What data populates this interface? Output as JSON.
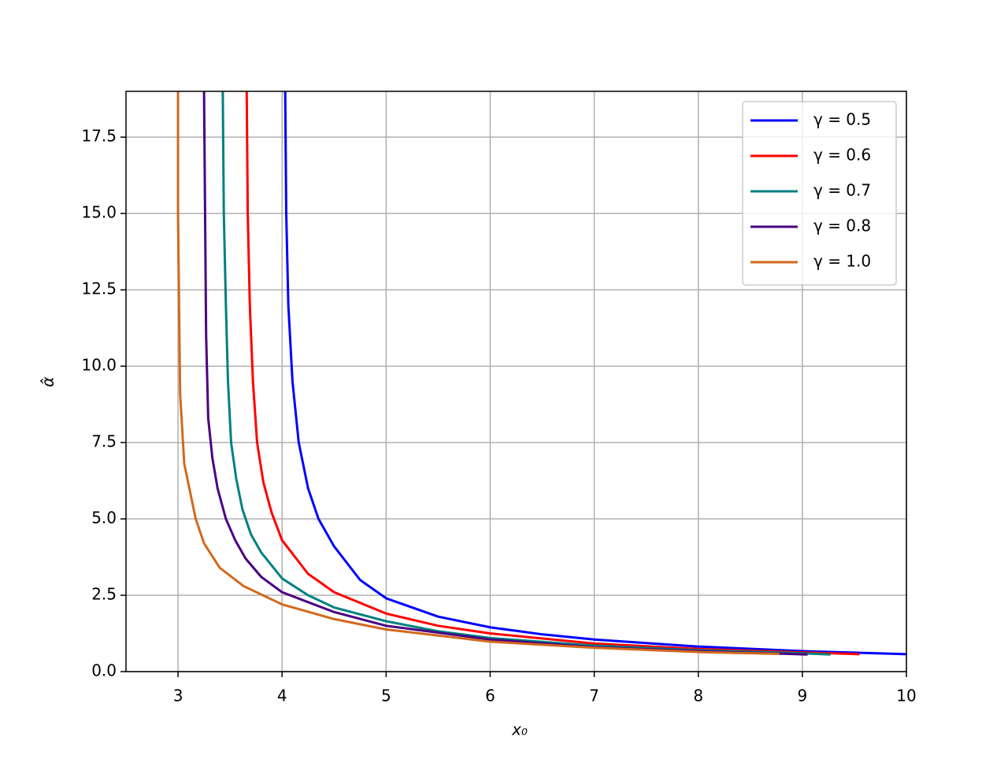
{
  "chart_data": {
    "type": "line",
    "xlabel": "x₀",
    "ylabel": "α̂",
    "xlim": [
      2.5,
      10
    ],
    "ylim": [
      0,
      19
    ],
    "xticks": [
      3,
      4,
      5,
      6,
      7,
      8,
      9,
      10
    ],
    "yticks": [
      {
        "value": 0,
        "label": "0.0"
      },
      2.5,
      {
        "value": 5,
        "label": "5.0"
      },
      7.5,
      {
        "value": 10,
        "label": "10.0"
      },
      12.5,
      {
        "value": 15,
        "label": "15.0"
      },
      17.5
    ],
    "grid": true,
    "legend": "upper right",
    "series": [
      {
        "name": "γ = 0.5",
        "color": "#0000ff",
        "x": [
          4.03,
          4.04,
          4.06,
          4.1,
          4.16,
          4.25,
          4.35,
          4.5,
          4.75,
          5,
          5.5,
          6,
          6.5,
          7,
          8,
          9,
          10
        ],
        "values": [
          19,
          15,
          12,
          9.5,
          7.5,
          6,
          5,
          4.1,
          3,
          2.4,
          1.8,
          1.45,
          1.22,
          1.05,
          0.82,
          0.67,
          0.57
        ]
      },
      {
        "name": "γ = 0.6",
        "color": "#ff0000",
        "x": [
          3.66,
          3.67,
          3.69,
          3.72,
          3.76,
          3.82,
          3.9,
          4,
          4.25,
          4.5,
          5,
          5.5,
          6,
          7,
          8,
          9,
          9.55
        ],
        "values": [
          19,
          15,
          12,
          9.5,
          7.5,
          6.2,
          5.2,
          4.3,
          3.2,
          2.6,
          1.9,
          1.5,
          1.25,
          0.92,
          0.74,
          0.63,
          0.57
        ]
      },
      {
        "name": "γ = 0.7",
        "color": "#008080",
        "x": [
          3.43,
          3.44,
          3.46,
          3.48,
          3.51,
          3.56,
          3.62,
          3.7,
          3.8,
          4,
          4.25,
          4.5,
          5,
          5.5,
          6,
          7,
          8,
          9,
          9.27
        ],
        "values": [
          19,
          15,
          12,
          9.5,
          7.5,
          6.3,
          5.3,
          4.5,
          3.9,
          3.05,
          2.5,
          2.1,
          1.65,
          1.32,
          1.1,
          0.85,
          0.7,
          0.6,
          0.56
        ]
      },
      {
        "name": "γ = 0.8",
        "color": "#4b0082",
        "x": [
          3.25,
          3.26,
          3.27,
          3.29,
          3.33,
          3.38,
          3.46,
          3.55,
          3.65,
          3.8,
          4,
          4.5,
          5,
          6,
          7,
          8,
          9.05
        ],
        "values": [
          19,
          15,
          11,
          8.3,
          7,
          6,
          5,
          4.3,
          3.7,
          3.1,
          2.6,
          1.95,
          1.5,
          1.05,
          0.8,
          0.67,
          0.56
        ]
      },
      {
        "name": "γ = 1.0",
        "color": "#d2691e",
        "x": [
          3.0,
          3.0,
          3.01,
          3.02,
          3.06,
          3.17,
          3.25,
          3.4,
          3.63,
          4,
          4.5,
          5,
          6,
          7,
          8,
          8.78
        ],
        "values": [
          19,
          15,
          12,
          9.1,
          6.8,
          5.0,
          4.2,
          3.4,
          2.8,
          2.2,
          1.72,
          1.38,
          0.98,
          0.78,
          0.64,
          0.58
        ]
      }
    ]
  }
}
